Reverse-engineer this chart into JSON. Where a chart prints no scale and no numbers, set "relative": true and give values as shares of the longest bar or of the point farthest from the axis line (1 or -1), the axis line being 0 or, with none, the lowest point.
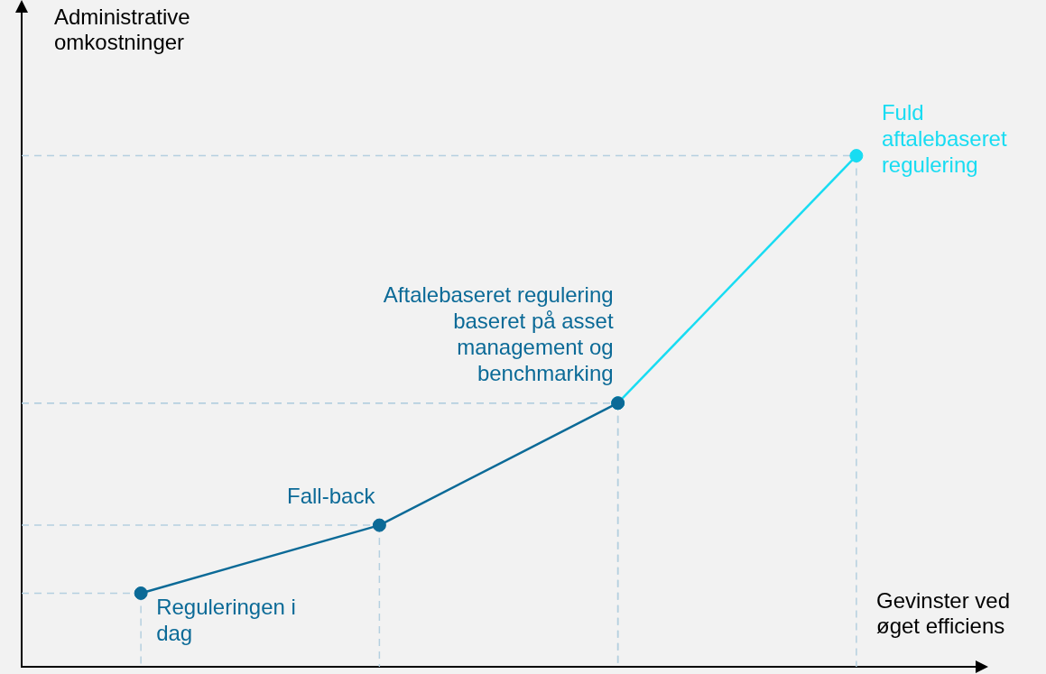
{
  "chart_data": {
    "type": "line",
    "relative": true,
    "marker": "circle",
    "grid": true,
    "xlabel": "Gevinster ved øget efficiens",
    "ylabel": "Administrative omkostninger",
    "categories": [
      null,
      null,
      null,
      null
    ],
    "series": [
      {
        "color": "#0b6a97",
        "values": [
          0.144,
          0.277,
          0.516,
          null
        ]
      },
      {
        "color": "#18dcf2",
        "values": [
          null,
          null,
          0.516,
          1
        ]
      }
    ],
    "annotations": [
      "Reguleringen i dag",
      "Fall-back",
      "Aftalebaseret regulering baseret på asset management og benchmarking",
      "Fuld aftalebaseret regulering"
    ]
  }
}
